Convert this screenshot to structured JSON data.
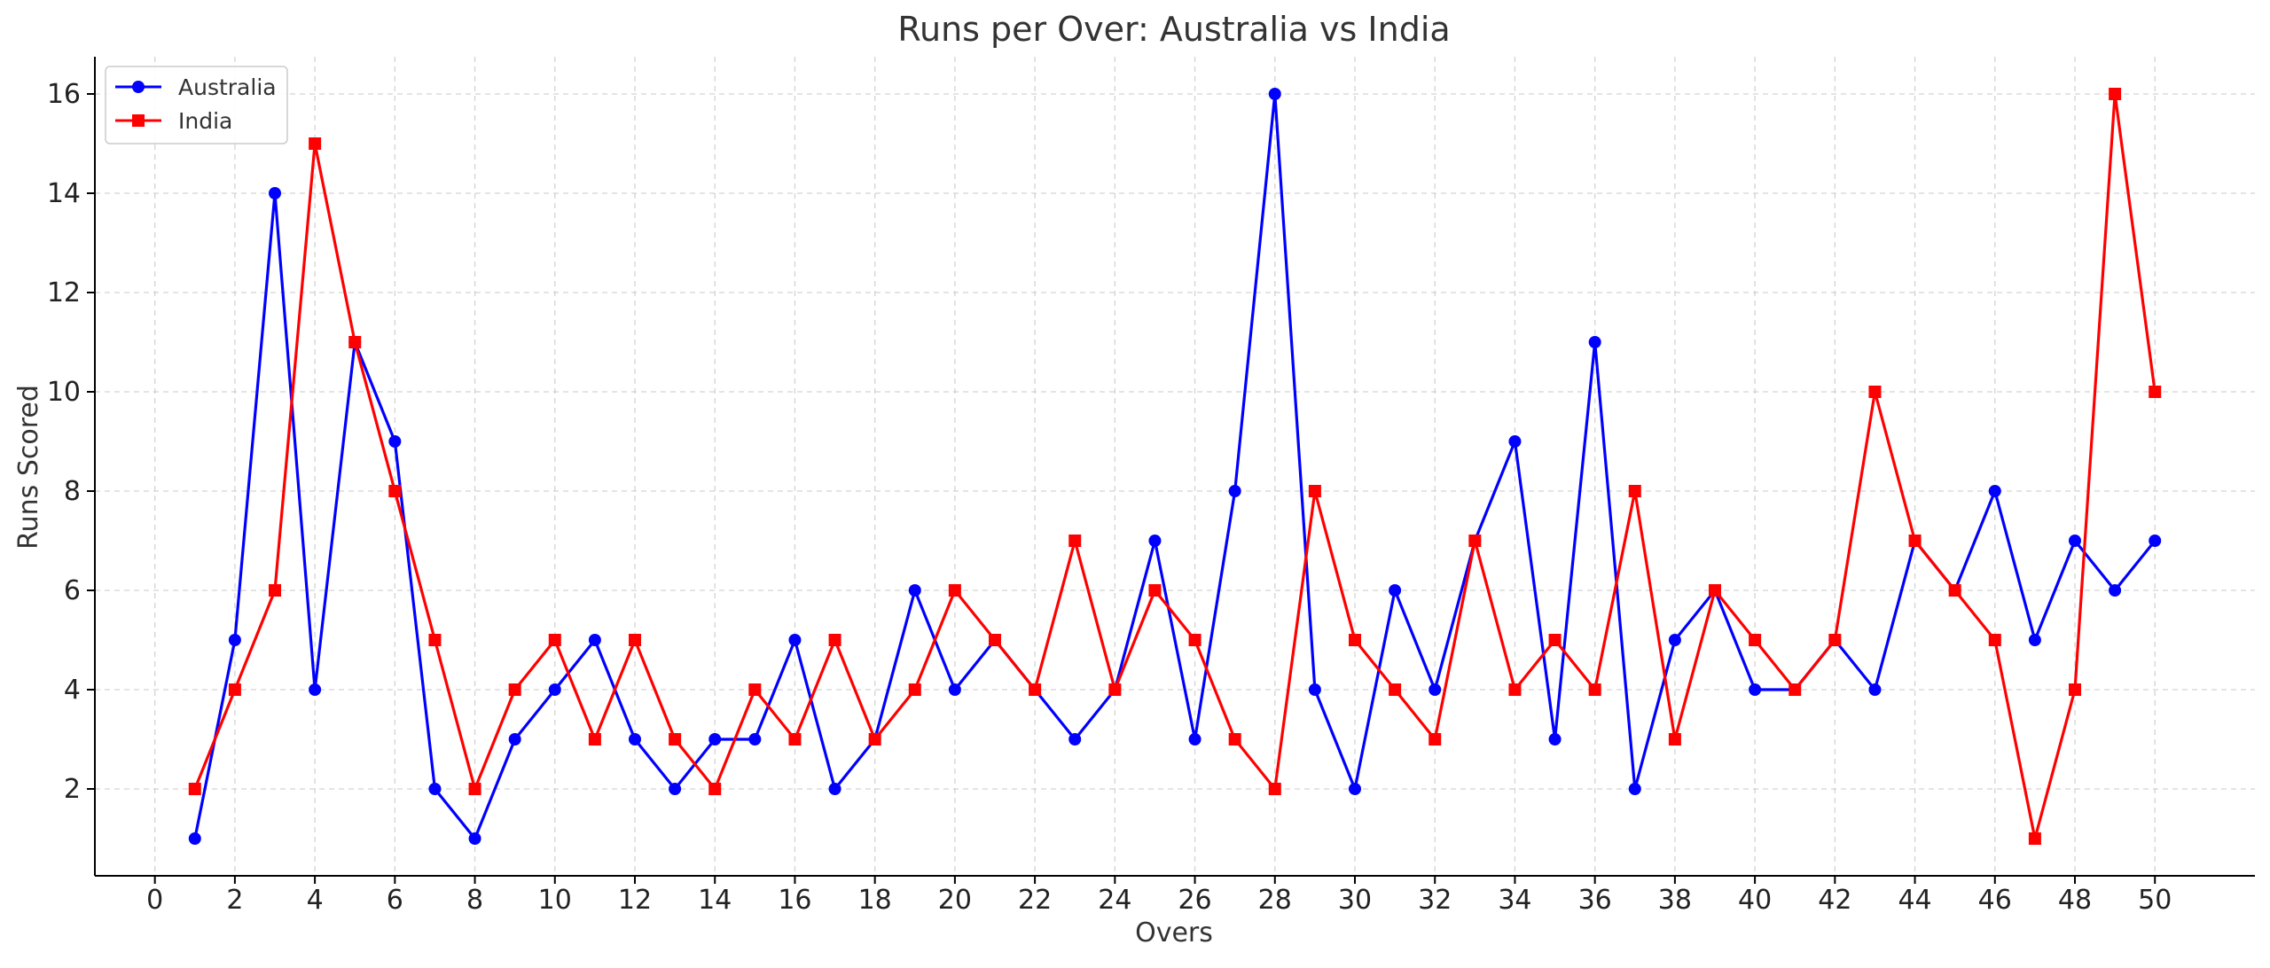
{
  "chart_data": {
    "type": "line",
    "title": "Runs per Over: Australia vs India",
    "xlabel": "Overs",
    "ylabel": "Runs Scored",
    "x": [
      1,
      2,
      3,
      4,
      5,
      6,
      7,
      8,
      9,
      10,
      11,
      12,
      13,
      14,
      15,
      16,
      17,
      18,
      19,
      20,
      21,
      22,
      23,
      24,
      25,
      26,
      27,
      28,
      29,
      30,
      31,
      32,
      33,
      34,
      35,
      36,
      37,
      38,
      39,
      40,
      41,
      42,
      43,
      44,
      45,
      46,
      47,
      48,
      49,
      50
    ],
    "xlim": [
      -1.5,
      52.5
    ],
    "ylim": [
      0.25,
      16.75
    ],
    "xticks": [
      0,
      2,
      4,
      6,
      8,
      10,
      12,
      14,
      16,
      18,
      20,
      22,
      24,
      26,
      28,
      30,
      32,
      34,
      36,
      38,
      40,
      42,
      44,
      46,
      48,
      50
    ],
    "yticks": [
      2,
      4,
      6,
      8,
      10,
      12,
      14,
      16
    ],
    "grid": true,
    "legend_position": "top-left",
    "series": [
      {
        "name": "Australia",
        "color": "#0000ff",
        "marker": "circle",
        "values": [
          1,
          5,
          14,
          4,
          11,
          9,
          2,
          1,
          3,
          4,
          5,
          3,
          2,
          3,
          3,
          5,
          2,
          3,
          6,
          4,
          5,
          4,
          3,
          4,
          7,
          3,
          8,
          16,
          4,
          2,
          6,
          4,
          7,
          9,
          3,
          11,
          2,
          5,
          6,
          4,
          4,
          5,
          4,
          7,
          6,
          8,
          5,
          7,
          6,
          7
        ]
      },
      {
        "name": "India",
        "color": "#ff0000",
        "marker": "square",
        "values": [
          2,
          4,
          6,
          15,
          11,
          8,
          5,
          2,
          4,
          5,
          3,
          5,
          3,
          2,
          4,
          3,
          5,
          3,
          4,
          6,
          5,
          4,
          7,
          4,
          6,
          5,
          3,
          2,
          8,
          5,
          4,
          3,
          7,
          4,
          5,
          4,
          8,
          3,
          6,
          5,
          4,
          5,
          10,
          7,
          6,
          5,
          1,
          4,
          16,
          10
        ]
      }
    ]
  }
}
